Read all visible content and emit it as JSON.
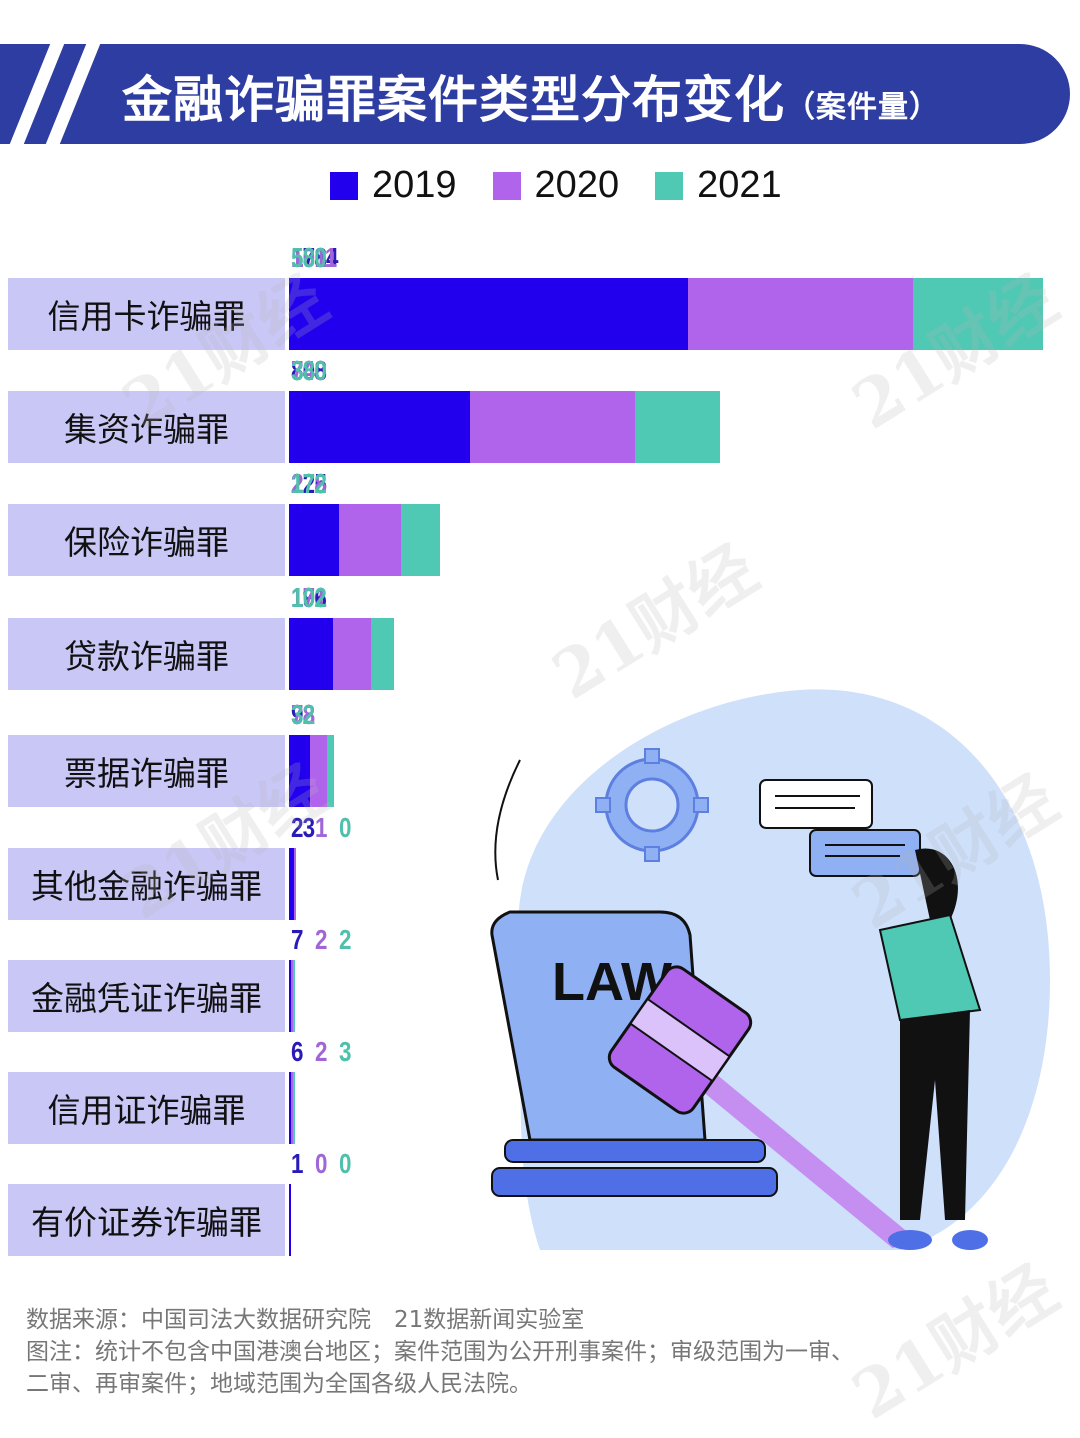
{
  "header": {
    "title": "金融诈骗罪案件类型分布变化",
    "subtitle": "（案件量）"
  },
  "legend": [
    {
      "label": "2019",
      "color": "#2200ee"
    },
    {
      "label": "2020",
      "color": "#b064ec"
    },
    {
      "label": "2021",
      "color": "#4fc8b4"
    }
  ],
  "chart_data": {
    "type": "bar",
    "orientation": "horizontal",
    "stacked": true,
    "title": "金融诈骗罪案件类型分布变化（案件量）",
    "xlabel": "",
    "ylabel": "",
    "grid": false,
    "legend_position": "top",
    "categories": [
      "信用卡诈骗罪",
      "集资诈骗罪",
      "保险诈骗罪",
      "贷款诈骗罪",
      "票据诈骗罪",
      "其他金融诈骗罪",
      "金融凭证诈骗罪",
      "信用证诈骗罪",
      "有价证券诈骗罪"
    ],
    "series": [
      {
        "name": "2019",
        "color": "#2200ee",
        "values": [
          1784,
          808,
          225,
          196,
          92,
          23,
          7,
          6,
          1
        ]
      },
      {
        "name": "2020",
        "color": "#b064ec",
        "values": [
          1011,
          740,
          278,
          171,
          78,
          1,
          2,
          2,
          0
        ]
      },
      {
        "name": "2021",
        "color": "#4fc8b4",
        "values": [
          580,
          380,
          172,
          102,
          32,
          0,
          2,
          3,
          0
        ]
      }
    ]
  },
  "rows": [
    {
      "label": "信用卡诈骗罪",
      "v2019": "1784",
      "v2020": "1011",
      "v2021": "580"
    },
    {
      "label": "集资诈骗罪",
      "v2019": "808",
      "v2020": "740",
      "v2021": "380"
    },
    {
      "label": "保险诈骗罪",
      "v2019": "225",
      "v2020": "278",
      "v2021": "172"
    },
    {
      "label": "贷款诈骗罪",
      "v2019": "196",
      "v2020": "171",
      "v2021": "102"
    },
    {
      "label": "票据诈骗罪",
      "v2019": "92",
      "v2020": "78",
      "v2021": "32"
    },
    {
      "label": "其他金融诈骗罪",
      "v2019": "23",
      "v2020": "1",
      "v2021": "0"
    },
    {
      "label": "金融凭证诈骗罪",
      "v2019": "7",
      "v2020": "2",
      "v2021": "2"
    },
    {
      "label": "信用证诈骗罪",
      "v2019": "6",
      "v2020": "2",
      "v2021": "3"
    },
    {
      "label": "有价证券诈骗罪",
      "v2019": "1",
      "v2020": "0",
      "v2021": "0"
    }
  ],
  "illustration": {
    "law_text": "LAW"
  },
  "footer": {
    "source": "数据来源：中国司法大数据研究院　21数据新闻实验室",
    "note_line1": "图注：统计不包含中国港澳台地区；案件范围为公开刑事案件；审级范围为一审、",
    "note_line2": "二审、再审案件；地域范围为全国各级人民法院。"
  },
  "watermark": "21财经"
}
